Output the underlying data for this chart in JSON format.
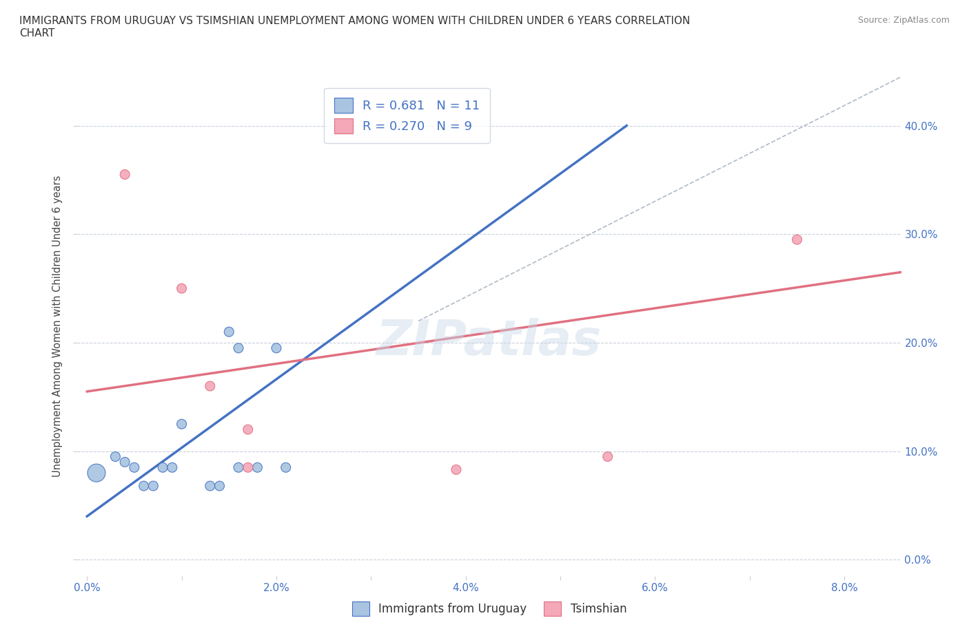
{
  "title": "IMMIGRANTS FROM URUGUAY VS TSIMSHIAN UNEMPLOYMENT AMONG WOMEN WITH CHILDREN UNDER 6 YEARS CORRELATION\nCHART",
  "source": "Source: ZipAtlas.com",
  "ylabel": "Unemployment Among Women with Children Under 6 years",
  "xlabel_ticks": [
    "0.0%",
    "2.0%",
    "4.0%",
    "6.0%",
    "8.0%"
  ],
  "xlabel_vals": [
    0.0,
    0.02,
    0.04,
    0.06,
    0.08
  ],
  "ylabel_ticks": [
    "0.0%",
    "10.0%",
    "20.0%",
    "30.0%",
    "40.0%"
  ],
  "ylabel_vals": [
    0.0,
    0.1,
    0.2,
    0.3,
    0.4
  ],
  "xlim": [
    -0.001,
    0.086
  ],
  "ylim": [
    -0.015,
    0.445
  ],
  "watermark": "ZIPatlas",
  "blue_color": "#a8c4e0",
  "pink_color": "#f4a8b8",
  "blue_line_color": "#4472c4",
  "pink_line_color": "#e07080",
  "dashed_line_color": "#b0b8c8",
  "legend1_R": "0.681",
  "legend1_N": "11",
  "legend2_R": "0.270",
  "legend2_N": "9",
  "blue_points_x": [
    0.001,
    0.003,
    0.004,
    0.005,
    0.006,
    0.007,
    0.008,
    0.009,
    0.01,
    0.013,
    0.014,
    0.015,
    0.016,
    0.016,
    0.018,
    0.02,
    0.021
  ],
  "blue_points_y": [
    0.08,
    0.095,
    0.09,
    0.085,
    0.068,
    0.068,
    0.085,
    0.085,
    0.125,
    0.068,
    0.068,
    0.21,
    0.195,
    0.085,
    0.085,
    0.195,
    0.085
  ],
  "blue_points_size": [
    350,
    100,
    100,
    100,
    100,
    100,
    100,
    100,
    100,
    100,
    100,
    100,
    100,
    100,
    100,
    100,
    100
  ],
  "pink_points_x": [
    0.004,
    0.01,
    0.013,
    0.017,
    0.017,
    0.039,
    0.055,
    0.075
  ],
  "pink_points_y": [
    0.355,
    0.25,
    0.16,
    0.12,
    0.085,
    0.083,
    0.095,
    0.295
  ],
  "pink_points_size": [
    100,
    100,
    100,
    100,
    100,
    100,
    100,
    100
  ],
  "blue_regline_x": [
    0.0,
    0.057
  ],
  "blue_regline_y": [
    0.04,
    0.4
  ],
  "pink_regline_x": [
    0.0,
    0.086
  ],
  "pink_regline_y": [
    0.155,
    0.265
  ],
  "diag_line_x": [
    0.035,
    0.086
  ],
  "diag_line_y": [
    0.22,
    0.445
  ]
}
